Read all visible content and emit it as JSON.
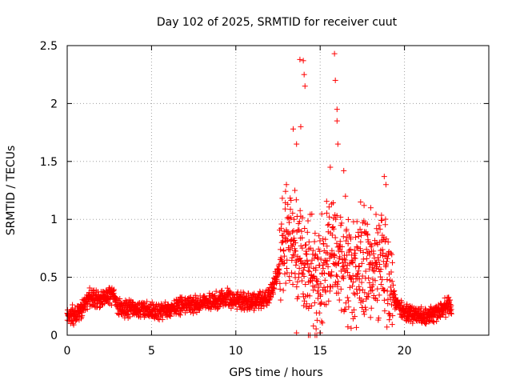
{
  "chart_data": {
    "type": "scatter",
    "title": "Day 102 of 2025, SRMTID for receiver cuut",
    "xlabel": "GPS time / hours",
    "ylabel": "SRMTID / TECUs",
    "xlim": [
      0,
      25
    ],
    "ylim": [
      0,
      2.5
    ],
    "xticks": [
      0,
      5,
      10,
      15,
      20
    ],
    "xtick_labels": [
      "0",
      "5",
      "10",
      "15",
      "20"
    ],
    "yticks": [
      0,
      0.5,
      1,
      1.5,
      2,
      2.5
    ],
    "ytick_labels": [
      "0",
      "0.5",
      "1",
      "1.5",
      "2",
      "2.5"
    ],
    "grid": true,
    "marker": "+",
    "color": "#ff0000",
    "series": [
      {
        "name": "SRMTID",
        "profile": {
          "x": [
            0,
            0.5,
            1,
            1.3,
            2,
            2.7,
            3,
            4,
            5,
            6,
            7,
            8,
            9,
            9.5,
            10,
            11,
            12,
            12.5,
            13,
            13.5,
            14,
            14.5,
            15,
            15.5,
            16,
            16.5,
            17,
            17.5,
            18,
            18.5,
            19,
            19.5,
            20,
            21,
            22,
            22.5,
            22.8
          ],
          "y": [
            0.18,
            0.17,
            0.25,
            0.33,
            0.3,
            0.35,
            0.24,
            0.22,
            0.21,
            0.22,
            0.26,
            0.28,
            0.3,
            0.33,
            0.3,
            0.29,
            0.33,
            0.55,
            0.85,
            0.8,
            0.7,
            0.55,
            0.45,
            0.75,
            0.65,
            0.55,
            0.5,
            0.6,
            0.62,
            0.65,
            0.55,
            0.28,
            0.2,
            0.17,
            0.2,
            0.25,
            0.24
          ]
        },
        "spikes": [
          {
            "x": 13.4,
            "y": 1.78
          },
          {
            "x": 13.6,
            "y": 1.65
          },
          {
            "x": 13.8,
            "y": 2.38
          },
          {
            "x": 13.85,
            "y": 1.8
          },
          {
            "x": 14.0,
            "y": 2.37
          },
          {
            "x": 14.05,
            "y": 2.25
          },
          {
            "x": 14.1,
            "y": 2.15
          },
          {
            "x": 15.6,
            "y": 1.45
          },
          {
            "x": 15.85,
            "y": 2.43
          },
          {
            "x": 15.9,
            "y": 2.2
          },
          {
            "x": 16.0,
            "y": 1.95
          },
          {
            "x": 16.0,
            "y": 1.85
          },
          {
            "x": 16.05,
            "y": 1.65
          },
          {
            "x": 16.4,
            "y": 1.42
          },
          {
            "x": 18.8,
            "y": 1.37
          },
          {
            "x": 18.9,
            "y": 1.3
          },
          {
            "x": 13.0,
            "y": 1.3
          },
          {
            "x": 13.5,
            "y": 1.25
          },
          {
            "x": 16.5,
            "y": 1.2
          },
          {
            "x": 17.4,
            "y": 1.15
          },
          {
            "x": 18.0,
            "y": 1.1
          },
          {
            "x": 14.3,
            "y": 0.0
          },
          {
            "x": 14.4,
            "y": 0.0
          },
          {
            "x": 14.7,
            "y": 0.0
          },
          {
            "x": 14.8,
            "y": 0.0
          },
          {
            "x": 15.0,
            "y": 0.02
          },
          {
            "x": 13.6,
            "y": 0.02
          },
          {
            "x": 14.6,
            "y": 0.08
          }
        ]
      }
    ]
  }
}
